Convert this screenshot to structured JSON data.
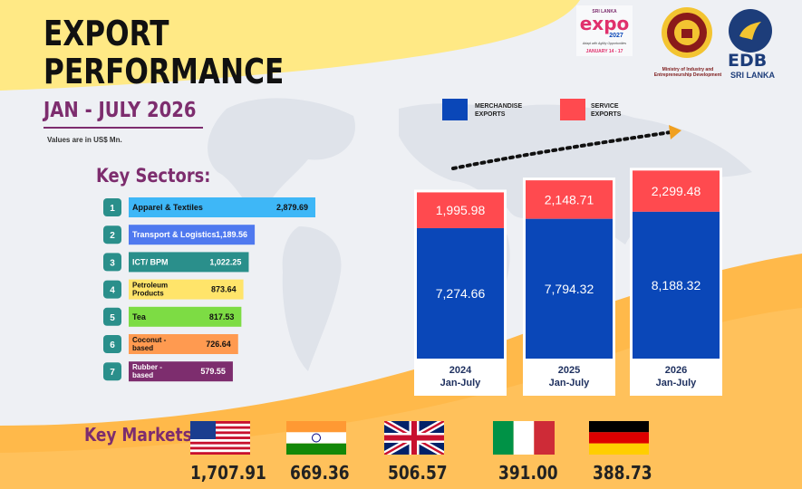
{
  "header": {
    "title_line1": "EXPORT",
    "title_line2": "PERFORMANCE",
    "period": "JAN - JULY 2026",
    "units_note": "Values are in US$ Mn."
  },
  "logos": {
    "expo_top": "SRI LANKA",
    "expo_word": "expo",
    "expo_year": "2027",
    "expo_tagline": "Adapt with Agility Opportunities",
    "expo_dates": "JANUARY 14 - 17",
    "ministry_text": "Ministry of Industry and Entrepreneurship Development",
    "edb_text": "EDB",
    "edb_sub": "SRI LANKA"
  },
  "legend": {
    "merchandise": "MERCHANDISE\nEXPORTS",
    "service": "SERVICE\nEXPORTS"
  },
  "colors": {
    "merchandise": "#0a47b8",
    "service": "#ff4a4f",
    "accent_purple": "#7d2d6e",
    "yellow": "#ffe985",
    "orange": "#ffac3a",
    "teal": "#2a8f8b"
  },
  "sectors_title": "Key Sectors:",
  "sectors": [
    {
      "rank": "1",
      "name": "Apparel & Textiles",
      "value": 2879.69,
      "value_label": "2,879.69",
      "color": "#3eb7f7",
      "text_color": "#111"
    },
    {
      "rank": "2",
      "name": "Transport & Logistics",
      "value": 1189.56,
      "value_label": "1,189.56",
      "color": "#4f79ef",
      "text_color": "#fff"
    },
    {
      "rank": "3",
      "name": "ICT/ BPM",
      "value": 1022.25,
      "value_label": "1,022.25",
      "color": "#2a8f8b",
      "text_color": "#fff"
    },
    {
      "rank": "4",
      "name": "Petroleum\nProducts",
      "value": 873.64,
      "value_label": "873.64",
      "color": "#ffe46a",
      "text_color": "#111"
    },
    {
      "rank": "5",
      "name": "Tea",
      "value": 817.53,
      "value_label": "817.53",
      "color": "#7ddc44",
      "text_color": "#111"
    },
    {
      "rank": "6",
      "name": "Coconut -\nbased",
      "value": 726.64,
      "value_label": "726.64",
      "color": "#ff9a50",
      "text_color": "#111"
    },
    {
      "rank": "7",
      "name": "Rubber -\nbased",
      "value": 579.55,
      "value_label": "579.55",
      "color": "#7d2d6e",
      "text_color": "#fff"
    }
  ],
  "chart_data": {
    "type": "bar",
    "categories": [
      "2024\nJan-July",
      "2025\nJan-July",
      "2026\nJan-July"
    ],
    "series": [
      {
        "name": "MERCHANDISE EXPORTS",
        "values": [
          7274.66,
          7794.32,
          8188.32
        ],
        "labels": [
          "7,274.66",
          "7,794.32",
          "8,188.32"
        ]
      },
      {
        "name": "SERVICE EXPORTS",
        "values": [
          1995.98,
          2148.71,
          2299.48
        ],
        "labels": [
          "1,995.98",
          "2,148.71",
          "2,299.48"
        ]
      }
    ],
    "stacked": true,
    "legend_position": "top"
  },
  "markets_title": "Key Markets:",
  "markets": [
    {
      "country": "usa",
      "value": "1,707.91"
    },
    {
      "country": "india",
      "value": "669.36"
    },
    {
      "country": "uk",
      "value": "506.57"
    },
    {
      "country": "italy",
      "value": "391.00"
    },
    {
      "country": "germany",
      "value": "388.73"
    }
  ]
}
